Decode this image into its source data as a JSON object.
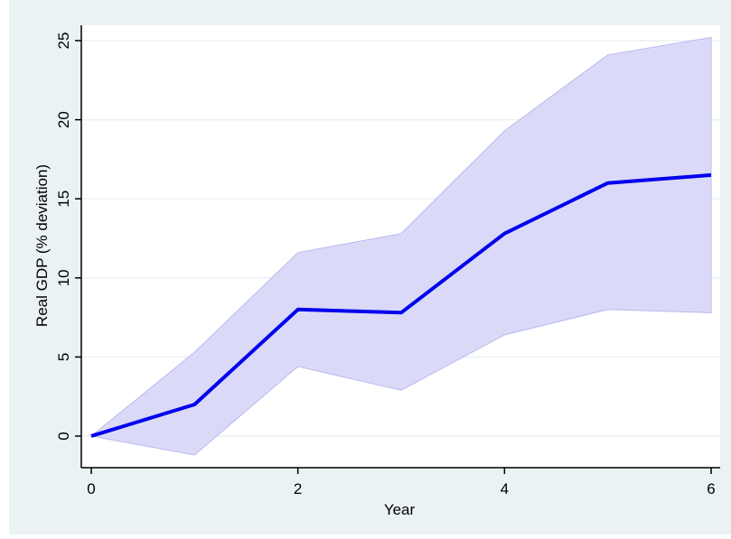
{
  "chart_data": {
    "type": "line",
    "title": "",
    "xlabel": "Year",
    "ylabel": "Real GDP (% deviation)",
    "xlim": [
      0,
      6
    ],
    "ylim": [
      -2,
      26
    ],
    "x_ticks": [
      0,
      2,
      4,
      6
    ],
    "x_tick_labels": [
      "0",
      "2",
      "4",
      "6"
    ],
    "y_ticks": [
      0,
      5,
      10,
      15,
      20,
      25
    ],
    "y_tick_labels": [
      "0",
      "5",
      "10",
      "15",
      "20",
      "25"
    ],
    "grid": true,
    "legend": "none",
    "colors": {
      "line": "#0000ee",
      "band_fill": "#dadaf8",
      "band_edge": "#b9b9f0",
      "plot_background": "#ffffff",
      "outer_background": "#eaf2f3",
      "grid": "#eaf2f3"
    },
    "x": [
      0,
      1,
      2,
      3,
      4,
      5,
      6
    ],
    "series": [
      {
        "values": [
          0,
          2.0,
          8.0,
          7.8,
          12.8,
          16.0,
          16.5
        ]
      }
    ],
    "band": {
      "upper": [
        0,
        5.3,
        11.6,
        12.8,
        19.3,
        24.1,
        25.2
      ],
      "lower": [
        0,
        -1.2,
        4.4,
        2.9,
        6.4,
        8.0,
        7.8
      ]
    }
  }
}
